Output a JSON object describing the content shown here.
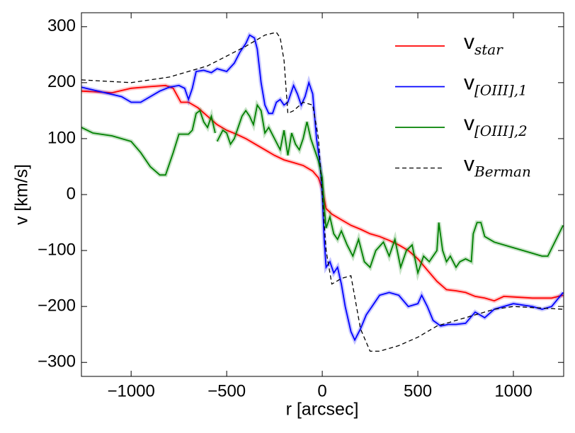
{
  "chart_data": {
    "type": "line",
    "xlabel": "r [arcsec]",
    "ylabel": "v [km/s]",
    "xlim": [
      -1260,
      1263
    ],
    "ylim": [
      -325,
      325
    ],
    "xticks": [
      {
        "value": -1000,
        "label": "−1000"
      },
      {
        "value": -500,
        "label": "−500"
      },
      0,
      500,
      1000
    ],
    "yticks": [
      {
        "value": -300,
        "label": "−300"
      },
      {
        "value": -200,
        "label": "−200"
      },
      {
        "value": -100,
        "label": "−100"
      },
      0,
      100,
      200,
      300
    ],
    "legend": "upper right",
    "series": [
      {
        "name": "v",
        "subscript": "star",
        "color": "#ff0000",
        "dash": false,
        "x": [
          -1260,
          -1100,
          -1000,
          -900,
          -820,
          -780,
          -740,
          -700,
          -650,
          -600,
          -550,
          -500,
          -450,
          -400,
          -350,
          -300,
          -250,
          -200,
          -150,
          -100,
          -50,
          -20,
          0,
          20,
          50,
          100,
          150,
          200,
          250,
          300,
          350,
          400,
          450,
          500,
          550,
          600,
          650,
          700,
          750,
          800,
          850,
          900,
          950,
          1000,
          1100,
          1200,
          1260
        ],
        "values": [
          185,
          182,
          190,
          193,
          195,
          190,
          165,
          165,
          155,
          140,
          125,
          115,
          108,
          100,
          90,
          80,
          70,
          62,
          57,
          52,
          42,
          30,
          10,
          -25,
          -35,
          -45,
          -55,
          -62,
          -70,
          -75,
          -82,
          -90,
          -100,
          -115,
          -135,
          -155,
          -170,
          -172,
          -175,
          -182,
          -185,
          -190,
          -182,
          -183,
          -185,
          -185,
          -180
        ]
      },
      {
        "name": "v",
        "subscript": "[OIII],1",
        "color": "#0000ff",
        "dash": false,
        "x": [
          -1260,
          -1150,
          -1050,
          -1000,
          -950,
          -900,
          -850,
          -800,
          -750,
          -720,
          -700,
          -680,
          -660,
          -620,
          -580,
          -550,
          -500,
          -460,
          -430,
          -400,
          -380,
          -355,
          -340,
          -320,
          -300,
          -280,
          -260,
          -240,
          -220,
          -200,
          -180,
          -150,
          -130,
          -110,
          -90,
          -70,
          -50,
          -30,
          -10,
          0,
          10,
          20,
          40,
          60,
          80,
          100,
          120,
          150,
          170,
          200,
          230,
          260,
          300,
          350,
          400,
          450,
          500,
          520,
          550,
          580,
          620,
          660,
          700,
          750,
          800,
          850,
          900,
          1000,
          1100,
          1150,
          1200,
          1260
        ],
        "values": [
          192,
          183,
          175,
          165,
          165,
          175,
          185,
          192,
          195,
          190,
          170,
          190,
          220,
          222,
          218,
          225,
          220,
          235,
          255,
          270,
          285,
          280,
          260,
          200,
          160,
          145,
          145,
          165,
          170,
          160,
          165,
          195,
          180,
          160,
          175,
          200,
          180,
          100,
          50,
          0,
          -80,
          -130,
          -120,
          -140,
          -130,
          -160,
          -200,
          -245,
          -260,
          -240,
          -215,
          -200,
          -180,
          -175,
          -180,
          -200,
          -195,
          -180,
          -200,
          -225,
          -235,
          -232,
          -232,
          -230,
          -210,
          -220,
          -205,
          -195,
          -200,
          -205,
          -200,
          -175
        ]
      },
      {
        "name": "v",
        "subscript": "[OIII],2",
        "color": "#008000",
        "dash": false,
        "x": [
          -1260,
          -1200,
          -1100,
          -1000,
          -950,
          -900,
          -850,
          -820,
          -780,
          -750,
          -700,
          -680,
          -660,
          -640,
          -620,
          -600,
          -580,
          -560,
          -555,
          -550,
          -520,
          -500,
          -480,
          -460,
          -440,
          -420,
          -400,
          -380,
          -360,
          -340,
          -320,
          -300,
          -280,
          -250,
          -220,
          -200,
          -180,
          -160,
          -140,
          -120,
          -100,
          -80,
          -60,
          -40,
          -20,
          0,
          10,
          20,
          40,
          60,
          80,
          100,
          130,
          160,
          190,
          220,
          250,
          280,
          320,
          350,
          380,
          410,
          440,
          470,
          500,
          530,
          560,
          600,
          610,
          630,
          650,
          670,
          700,
          720,
          750,
          780,
          790,
          810,
          830,
          850,
          900,
          1000,
          1100,
          1150,
          1180,
          1260
        ],
        "values": [
          120,
          110,
          105,
          95,
          75,
          50,
          35,
          35,
          75,
          108,
          108,
          115,
          145,
          150,
          130,
          120,
          140,
          110,
          null,
          95,
          115,
          110,
          90,
          100,
          120,
          140,
          150,
          140,
          125,
          160,
          150,
          110,
          120,
          100,
          80,
          115,
          70,
          110,
          90,
          80,
          100,
          130,
          100,
          80,
          60,
          30,
          -20,
          -60,
          -40,
          -70,
          -80,
          -65,
          -90,
          -110,
          -80,
          -120,
          -130,
          -100,
          -85,
          -110,
          -80,
          -130,
          -100,
          -90,
          -140,
          -110,
          -120,
          -100,
          -50,
          -100,
          -120,
          -110,
          -130,
          -120,
          -115,
          -120,
          -70,
          -50,
          -50,
          -75,
          -85,
          -95,
          -105,
          -110,
          -110,
          -55
        ]
      },
      {
        "name": "v",
        "subscript": "Berman",
        "color": "#000000",
        "dash": true,
        "x": [
          -1260,
          -1000,
          -800,
          -600,
          -400,
          -300,
          -240,
          -220,
          -200,
          -180,
          -150,
          -100,
          -50,
          -20,
          0,
          20,
          50,
          100,
          150,
          200,
          250,
          300,
          400,
          500,
          600,
          700,
          800,
          900,
          1000,
          1260
        ],
        "values": [
          205,
          200,
          210,
          230,
          265,
          285,
          290,
          280,
          240,
          145,
          150,
          165,
          160,
          100,
          0,
          -100,
          -160,
          -150,
          -145,
          -240,
          -280,
          -280,
          -270,
          -255,
          -235,
          -225,
          -215,
          -205,
          -200,
          -205
        ]
      }
    ]
  }
}
